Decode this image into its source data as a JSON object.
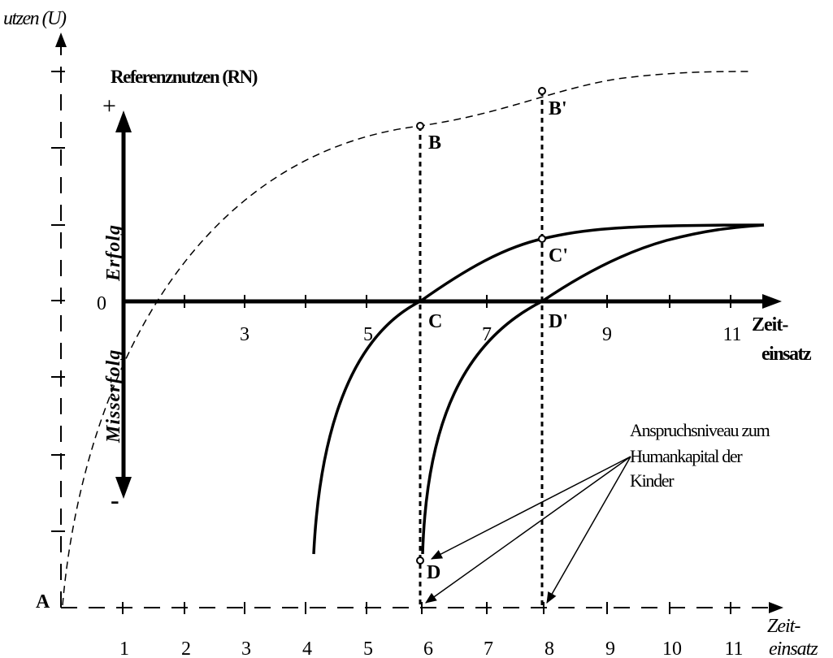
{
  "y_axis_label": "utzen (U)",
  "reference_label": "Referenznutzen (RN)",
  "sign_plus": "+",
  "sign_minus": "-",
  "success_label": "Erfolg",
  "failure_label": "Misserfolg",
  "origin_upper": "0",
  "origin_lower": "A",
  "upper_axis_label_1": "Zeit-",
  "upper_axis_label_2": "einsatz",
  "lower_axis_label_1": "Zeit-",
  "lower_axis_label_2": "einsatz",
  "upper_ticks": [
    "3",
    "5",
    "7",
    "9",
    "11"
  ],
  "lower_ticks": [
    "1",
    "2",
    "3",
    "4",
    "5",
    "6",
    "7",
    "8",
    "9",
    "10",
    "11"
  ],
  "points": {
    "B": "B",
    "B_prime": "B'",
    "C": "C",
    "C_prime": "C'",
    "D": "D",
    "D_prime": "D'"
  },
  "annotation": {
    "line1": "Anspruchsniveau zum",
    "line2": "Humankapital der",
    "line3": "Kinder"
  }
}
